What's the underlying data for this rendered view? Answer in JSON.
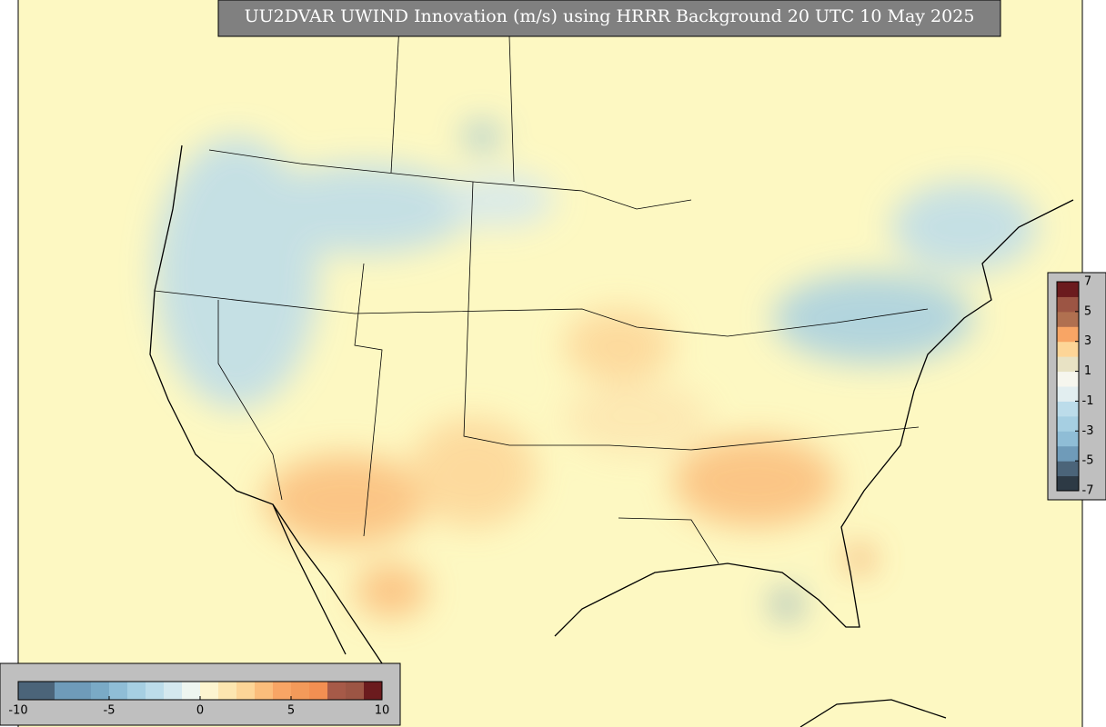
{
  "title": "UU2DVAR UWIND Innovation (m/s) using HRRR Background 20 UTC 10 May 2025",
  "colorbars": [
    {
      "orientation": "horizontal",
      "lim": [
        -10,
        10
      ],
      "ticks": [
        -10,
        -5,
        0,
        5,
        10
      ],
      "colors": [
        "#4b6479",
        "#4b6479",
        "#6f9bb9",
        "#6f9bb9",
        "#7aaac6",
        "#8fbdd6",
        "#a6cfe2",
        "#bcdcea",
        "#d4e8ef",
        "#eef5f0",
        "#fdf5d0",
        "#fde6b0",
        "#fdd597",
        "#fbbd7b",
        "#f8a565",
        "#f39a5a",
        "#f28f52",
        "#a65a48",
        "#9c5544",
        "#6b1b1e"
      ]
    },
    {
      "orientation": "vertical",
      "lim": [
        -7,
        7
      ],
      "ticks": [
        7,
        5,
        3,
        1,
        -1,
        -3,
        -5,
        -7
      ],
      "colors": [
        "#2d3a45",
        "#4b6479",
        "#6f9bb9",
        "#8fbdd6",
        "#a6cfe2",
        "#bcdcea",
        "#e2eef0",
        "#f6f6ee",
        "#e8e2c4",
        "#fdd597",
        "#f8a565",
        "#b07050",
        "#9c5544",
        "#6b1b1e"
      ]
    }
  ]
}
